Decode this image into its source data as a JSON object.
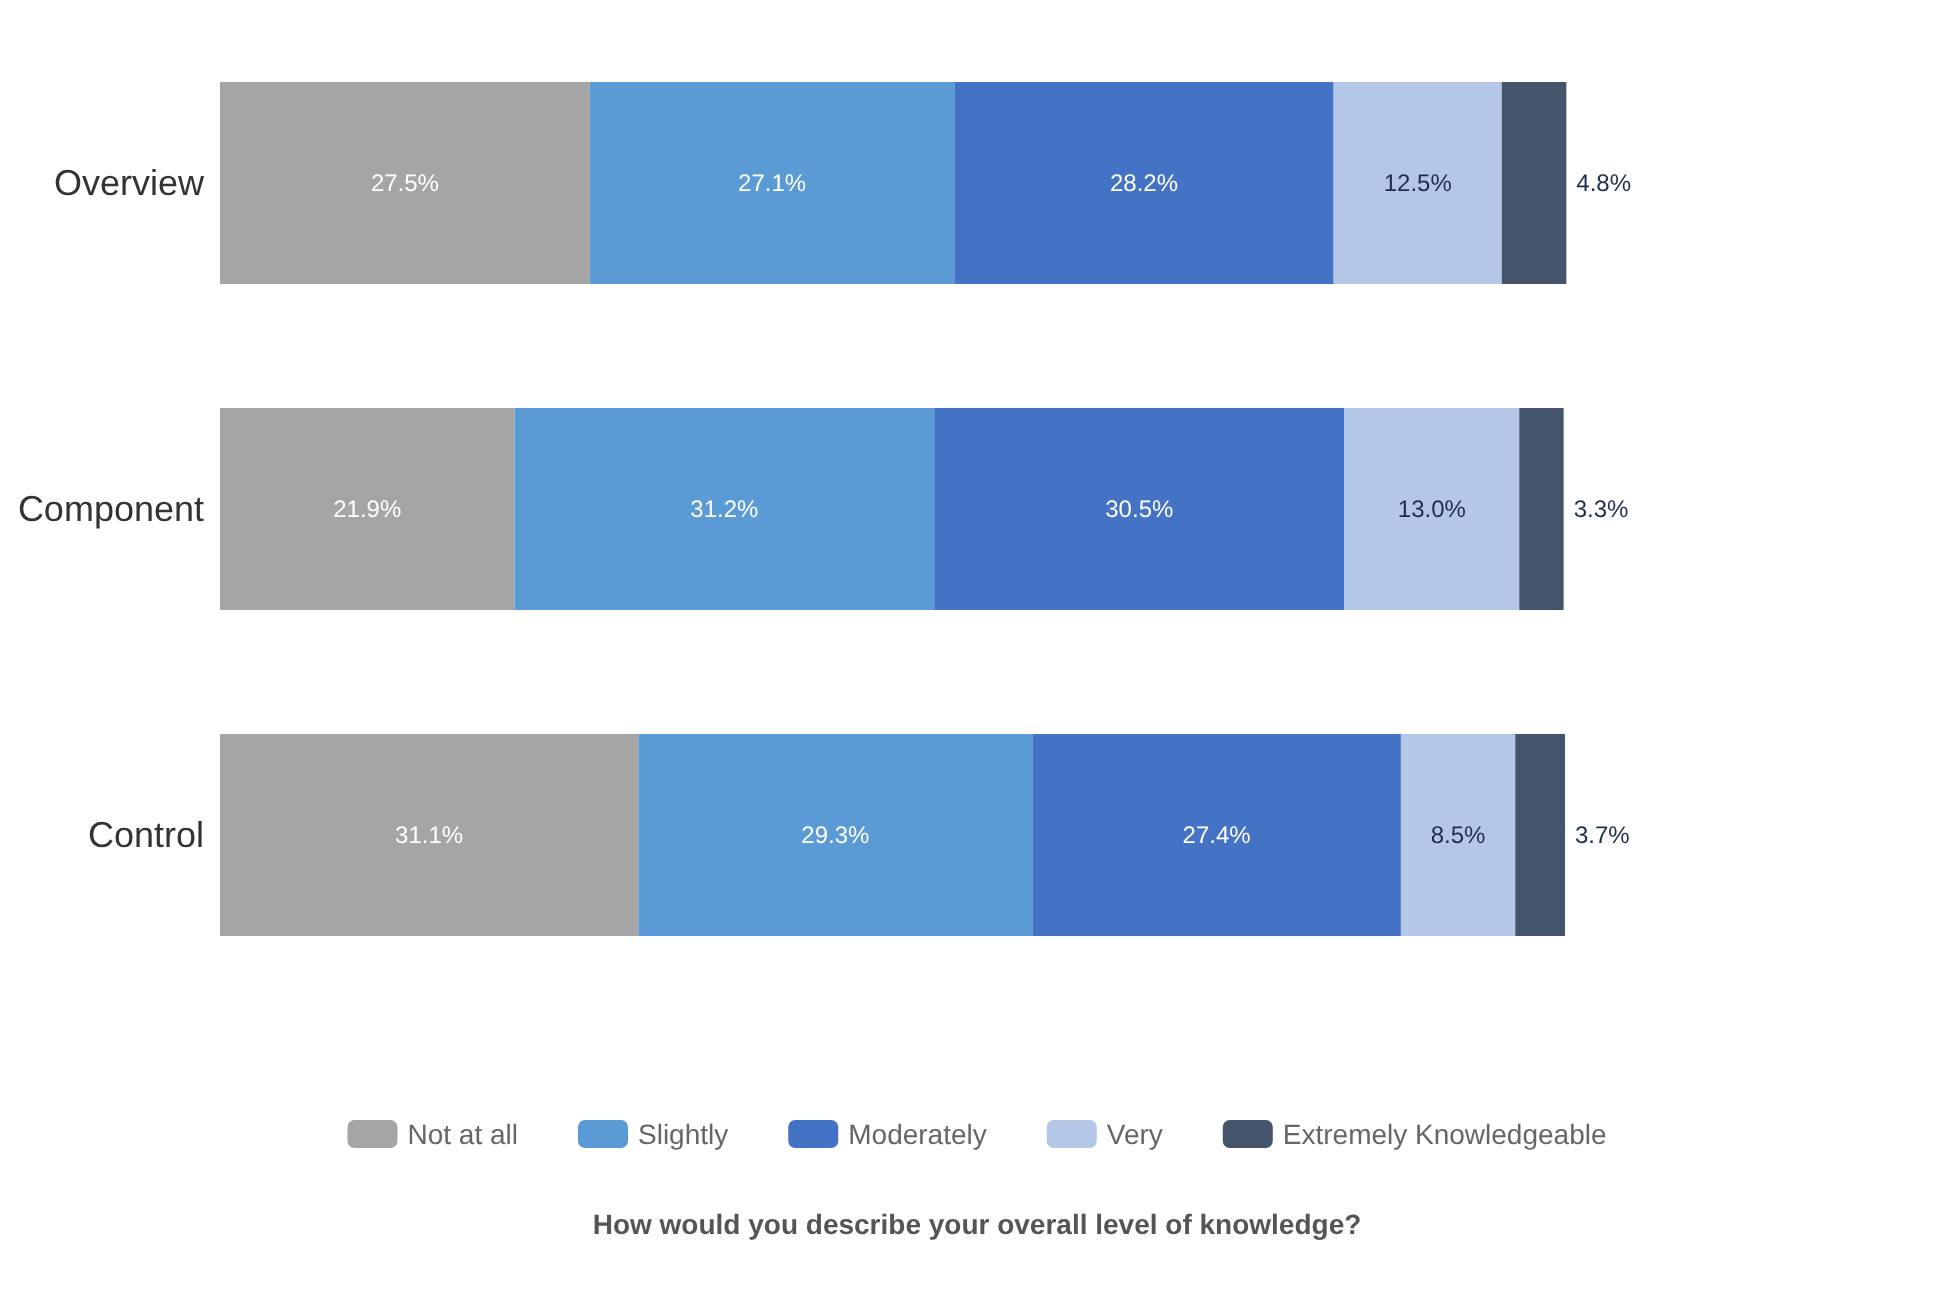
{
  "chart_data": {
    "type": "bar",
    "orientation": "horizontal",
    "stacked": true,
    "annotations": [
      "How would you describe your overall level of knowledge?"
    ],
    "categories": [
      "Overview",
      "Component",
      "Control"
    ],
    "series": [
      {
        "name": "Not at all",
        "color": "#a5a5a5",
        "values": [
          27.5,
          21.9,
          31.1
        ],
        "value_labels": [
          "27.5%",
          "21.9%",
          "31.1%"
        ]
      },
      {
        "name": "Slightly",
        "color": "#5b9bd5",
        "values": [
          27.1,
          31.2,
          29.3
        ],
        "value_labels": [
          "27.1%",
          "31.2%",
          "29.3%"
        ]
      },
      {
        "name": "Moderately",
        "color": "#4472c4",
        "values": [
          28.2,
          30.5,
          27.4
        ],
        "value_labels": [
          "28.2%",
          "30.5%",
          "27.4%"
        ]
      },
      {
        "name": "Very",
        "color": "#b4c7e7",
        "values": [
          12.5,
          13.0,
          8.5
        ],
        "value_labels": [
          "12.5%",
          "13.0%",
          "8.5%"
        ]
      },
      {
        "name": "Extremely Knowledgeable",
        "color": "#44546a",
        "values": [
          4.8,
          3.3,
          3.7
        ],
        "value_labels": [
          "4.8%",
          "3.3%",
          "3.7%"
        ]
      }
    ],
    "legend": "bottom",
    "tick_labels": "y"
  }
}
